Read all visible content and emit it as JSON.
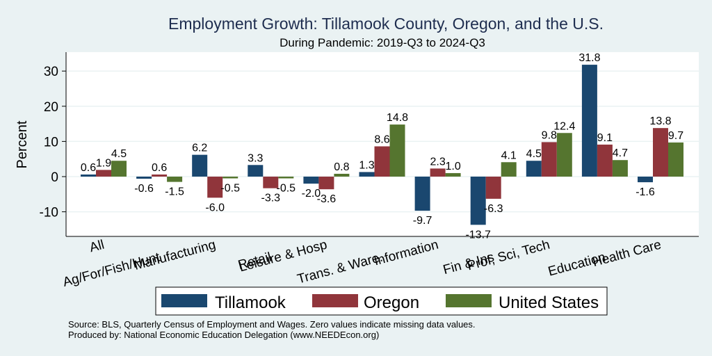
{
  "chart_data": {
    "type": "bar",
    "title": "Employment Growth: Tillamook County, Oregon, and the U.S.",
    "subtitle": "During Pandemic: 2019-Q3 to 2024-Q3",
    "xlabel": "",
    "ylabel": "Percent",
    "ylim": [
      -17,
      35
    ],
    "yticks": [
      -10,
      0,
      10,
      20,
      30
    ],
    "grid": true,
    "legend_position": "bottom",
    "categories": [
      "All",
      "Ag/For/Fish/Hunt",
      "Manufacturing",
      "Retail",
      "Leisure & Hosp",
      "Trans. & Ware.",
      "Information",
      "Fin & Ins",
      "Prof, Sci, Tech",
      "Education",
      "Health Care"
    ],
    "series": [
      {
        "name": "Tillamook",
        "color": "#1a476f",
        "values": [
          0.6,
          -0.6,
          6.2,
          3.3,
          -2.0,
          1.3,
          -9.7,
          -13.7,
          4.5,
          31.8,
          -1.6
        ]
      },
      {
        "name": "Oregon",
        "color": "#90353b",
        "values": [
          1.9,
          0.6,
          -6.0,
          -3.3,
          -3.6,
          8.6,
          2.3,
          -6.3,
          9.8,
          9.1,
          13.8
        ]
      },
      {
        "name": "United States",
        "color": "#55752f",
        "values": [
          4.5,
          -1.5,
          -0.5,
          -0.5,
          0.8,
          14.8,
          1.0,
          4.1,
          12.4,
          4.7,
          9.7
        ]
      }
    ],
    "notes": [
      "Source: BLS, Quarterly Census of Employment and Wages. Zero values indicate missing data values.",
      "Produced by: National Economic Education Delegation (www.NEEDEcon.org)"
    ]
  }
}
